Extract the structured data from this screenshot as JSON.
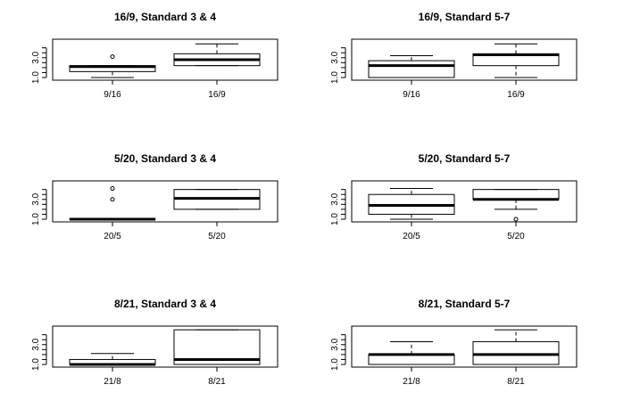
{
  "chart_data": [
    {
      "type": "box",
      "title": "16/9, Standard 3 & 4",
      "categories": [
        "9/16",
        "16/9"
      ],
      "yticks": [
        "1.0",
        "3.0"
      ],
      "ylim": [
        1.0,
        4.6
      ],
      "boxes": [
        {
          "lower_whisker": 1.0,
          "q1": 1.6,
          "median": 2.1,
          "q3": 2.2,
          "upper_whisker": 2.2,
          "outliers": [
            3.1
          ]
        },
        {
          "lower_whisker": 2.2,
          "q1": 2.2,
          "median": 2.8,
          "q3": 3.4,
          "upper_whisker": 4.4,
          "outliers": []
        }
      ]
    },
    {
      "type": "box",
      "title": "16/9, Standard 5-7",
      "categories": [
        "9/16",
        "16/9"
      ],
      "yticks": [
        "1.0",
        "3.0"
      ],
      "ylim": [
        1.0,
        4.6
      ],
      "boxes": [
        {
          "lower_whisker": 1.0,
          "q1": 1.0,
          "median": 2.2,
          "q3": 2.7,
          "upper_whisker": 3.2,
          "outliers": []
        },
        {
          "lower_whisker": 1.0,
          "q1": 2.2,
          "median": 3.3,
          "q3": 3.4,
          "upper_whisker": 4.4,
          "outliers": []
        }
      ]
    },
    {
      "type": "box",
      "title": "5/20, Standard 3 & 4",
      "categories": [
        "20/5",
        "5/20"
      ],
      "yticks": [
        "1.0",
        "3.0"
      ],
      "ylim": [
        1.0,
        4.6
      ],
      "boxes": [
        {
          "lower_whisker": 1.0,
          "q1": 1.0,
          "median": 1.0,
          "q3": 1.0,
          "upper_whisker": 1.0,
          "outliers": [
            3.0,
            4.1
          ]
        },
        {
          "lower_whisker": 2.0,
          "q1": 2.0,
          "median": 3.1,
          "q3": 4.0,
          "upper_whisker": 4.0,
          "outliers": []
        }
      ]
    },
    {
      "type": "box",
      "title": "5/20, Standard 5-7",
      "categories": [
        "20/5",
        "5/20"
      ],
      "yticks": [
        "1.0",
        "3.0"
      ],
      "ylim": [
        1.0,
        4.6
      ],
      "boxes": [
        {
          "lower_whisker": 1.0,
          "q1": 1.5,
          "median": 2.4,
          "q3": 3.5,
          "upper_whisker": 4.1,
          "outliers": []
        },
        {
          "lower_whisker": 2.0,
          "q1": 3.0,
          "median": 3.0,
          "q3": 4.0,
          "upper_whisker": 4.0,
          "outliers": [
            1.0
          ]
        }
      ]
    },
    {
      "type": "box",
      "title": "8/21, Standard 3 & 4",
      "categories": [
        "21/8",
        "8/21"
      ],
      "yticks": [
        "1.0",
        "3.0"
      ],
      "ylim": [
        1.0,
        4.6
      ],
      "boxes": [
        {
          "lower_whisker": 1.0,
          "q1": 1.0,
          "median": 1.0,
          "q3": 1.5,
          "upper_whisker": 2.1,
          "outliers": []
        },
        {
          "lower_whisker": 1.0,
          "q1": 1.0,
          "median": 1.5,
          "q3": 4.5,
          "upper_whisker": 4.5,
          "outliers": []
        }
      ]
    },
    {
      "type": "box",
      "title": "8/21, Standard 5-7",
      "categories": [
        "21/8",
        "8/21"
      ],
      "yticks": [
        "1.0",
        "3.0"
      ],
      "ylim": [
        1.0,
        4.6
      ],
      "boxes": [
        {
          "lower_whisker": 1.0,
          "q1": 1.0,
          "median": 2.0,
          "q3": 2.0,
          "upper_whisker": 3.3,
          "outliers": []
        },
        {
          "lower_whisker": 1.0,
          "q1": 1.0,
          "median": 2.0,
          "q3": 3.3,
          "upper_whisker": 4.5,
          "outliers": []
        }
      ]
    }
  ]
}
